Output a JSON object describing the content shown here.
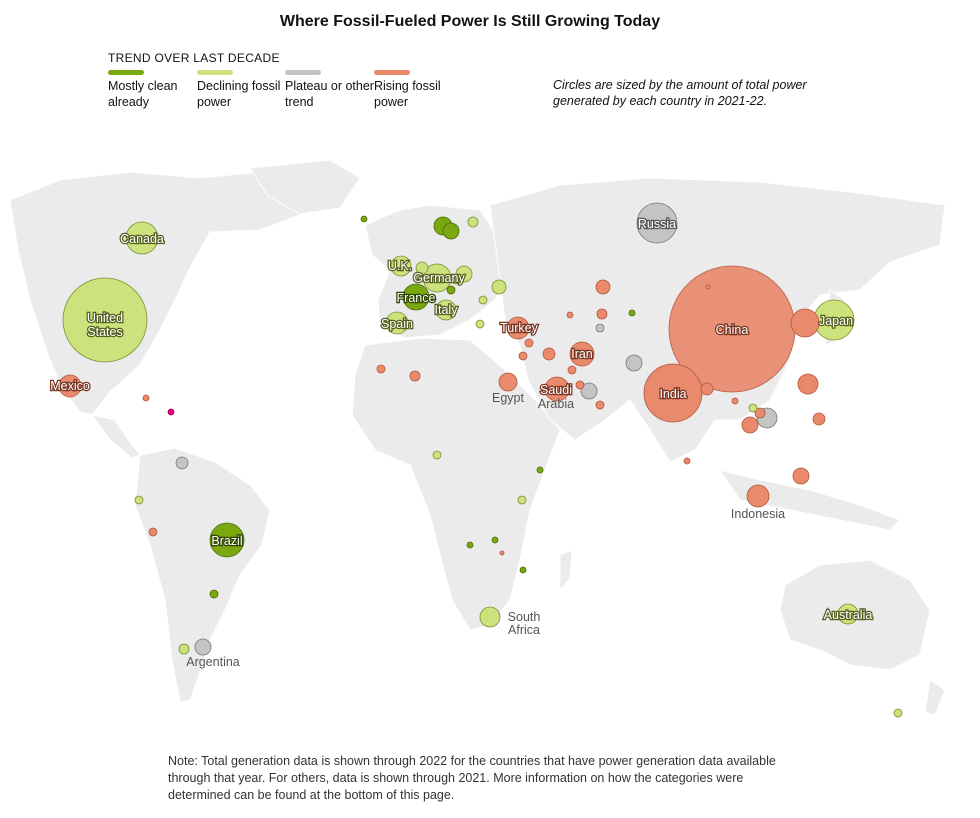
{
  "title": "Where Fossil-Fueled Power Is Still Growing Today",
  "legend": {
    "heading": "TREND OVER LAST DECADE",
    "items": [
      {
        "label": "Mostly clean already",
        "color": "#7aa80f"
      },
      {
        "label": "Declining fossil power",
        "color": "#cce27c"
      },
      {
        "label": "Plateau or other trend",
        "color": "#c4c4c4"
      },
      {
        "label": "Rising fossil power",
        "color": "#e98a6d"
      }
    ]
  },
  "size_note": "Circles are sized by the amount of total power generated by each country in 2021-22.",
  "footnote": "Note: Total generation data is shown through 2022 for the countries that have power generation data available through that year. For others, data is shown through 2021. More information on how the categories were determined can be found at the bottom of this page.",
  "labels": {
    "us_1": "United",
    "us_2": "States",
    "canada": "Canada",
    "mexico": "Mexico",
    "brazil": "Brazil",
    "argentina": "Argentina",
    "uk": "U.K.",
    "germany": "Germany",
    "france": "France",
    "italy": "Italy",
    "spain": "Spain",
    "turkey": "Turkey",
    "egypt": "Egypt",
    "saudi_1": "Saudi",
    "saudi_2": "Arabia",
    "iran": "Iran",
    "russia": "Russia",
    "china": "China",
    "india": "India",
    "japan": "Japan",
    "indonesia": "Indonesia",
    "south_africa_1": "South",
    "south_africa_2": "Africa",
    "australia": "Australia"
  },
  "map_data": {
    "category_colors": {
      "clean": "#7aa80f",
      "declining": "#cce27c",
      "plateau": "#c4c4c4",
      "rising": "#e98a6d"
    },
    "countries": [
      {
        "name": "United States",
        "category": "declining"
      },
      {
        "name": "Canada",
        "category": "declining"
      },
      {
        "name": "Mexico",
        "category": "rising"
      },
      {
        "name": "Brazil",
        "category": "clean"
      },
      {
        "name": "Argentina",
        "category": "plateau"
      },
      {
        "name": "U.K.",
        "category": "declining"
      },
      {
        "name": "Germany",
        "category": "declining"
      },
      {
        "name": "France",
        "category": "clean"
      },
      {
        "name": "Italy",
        "category": "declining"
      },
      {
        "name": "Spain",
        "category": "declining"
      },
      {
        "name": "Turkey",
        "category": "rising"
      },
      {
        "name": "Egypt",
        "category": "rising"
      },
      {
        "name": "Saudi Arabia",
        "category": "rising"
      },
      {
        "name": "Iran",
        "category": "rising"
      },
      {
        "name": "Russia",
        "category": "plateau"
      },
      {
        "name": "China",
        "category": "rising"
      },
      {
        "name": "India",
        "category": "rising"
      },
      {
        "name": "Japan",
        "category": "declining"
      },
      {
        "name": "Indonesia",
        "category": "rising"
      },
      {
        "name": "South Africa",
        "category": "declining"
      },
      {
        "name": "Australia",
        "category": "declining"
      }
    ]
  }
}
